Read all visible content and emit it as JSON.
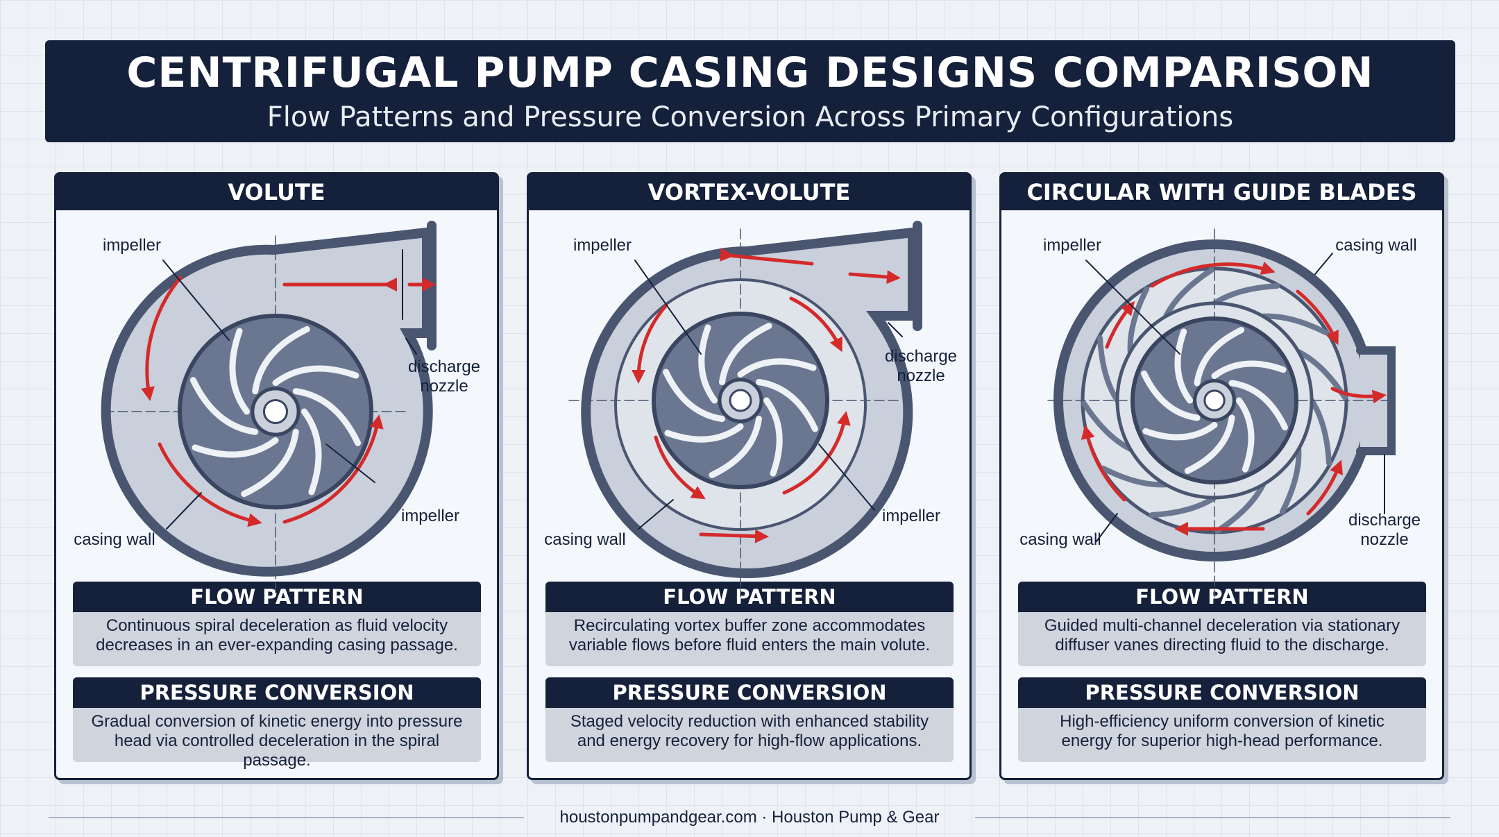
{
  "header": {
    "title": "CENTRIFUGAL PUMP CASING DESIGNS COMPARISON",
    "subtitle": "Flow Patterns and Pressure Conversion Across Primary Configurations"
  },
  "panels": [
    {
      "title": "VOLUTE",
      "labels": [
        "impeller",
        "discharge nozzle",
        "impeller",
        "casing wall"
      ],
      "flow_pattern": {
        "heading": "FLOW PATTERN",
        "text": "Continuous spiral deceleration as fluid velocity decreases in an ever-expanding casing passage."
      },
      "pressure_conversion": {
        "heading": "PRESSURE CONVERSION",
        "text": "Gradual conversion of kinetic energy into pressure head via controlled deceleration in the spiral passage."
      }
    },
    {
      "title": "VORTEX-VOLUTE",
      "labels": [
        "impeller",
        "discharge nozzle",
        "impeller",
        "casing wall"
      ],
      "flow_pattern": {
        "heading": "FLOW PATTERN",
        "text": "Recirculating vortex buffer zone accommodates variable flows before fluid enters the main volute."
      },
      "pressure_conversion": {
        "heading": "PRESSURE CONVERSION",
        "text": "Staged velocity reduction with enhanced stability and energy recovery for high-flow applications."
      }
    },
    {
      "title": "CIRCULAR WITH GUIDE BLADES",
      "labels": [
        "impeller",
        "casing wall",
        "discharge nozzle",
        "casing wall"
      ],
      "flow_pattern": {
        "heading": "FLOW PATTERN",
        "text": "Guided multi-channel deceleration via stationary diffuser vanes directing fluid to the discharge."
      },
      "pressure_conversion": {
        "heading": "PRESSURE CONVERSION",
        "text": "High-efficiency uniform conversion of kinetic energy for superior high-head performance."
      }
    }
  ],
  "footer": "houstonpumpandgear.com · Houston Pump & Gear"
}
